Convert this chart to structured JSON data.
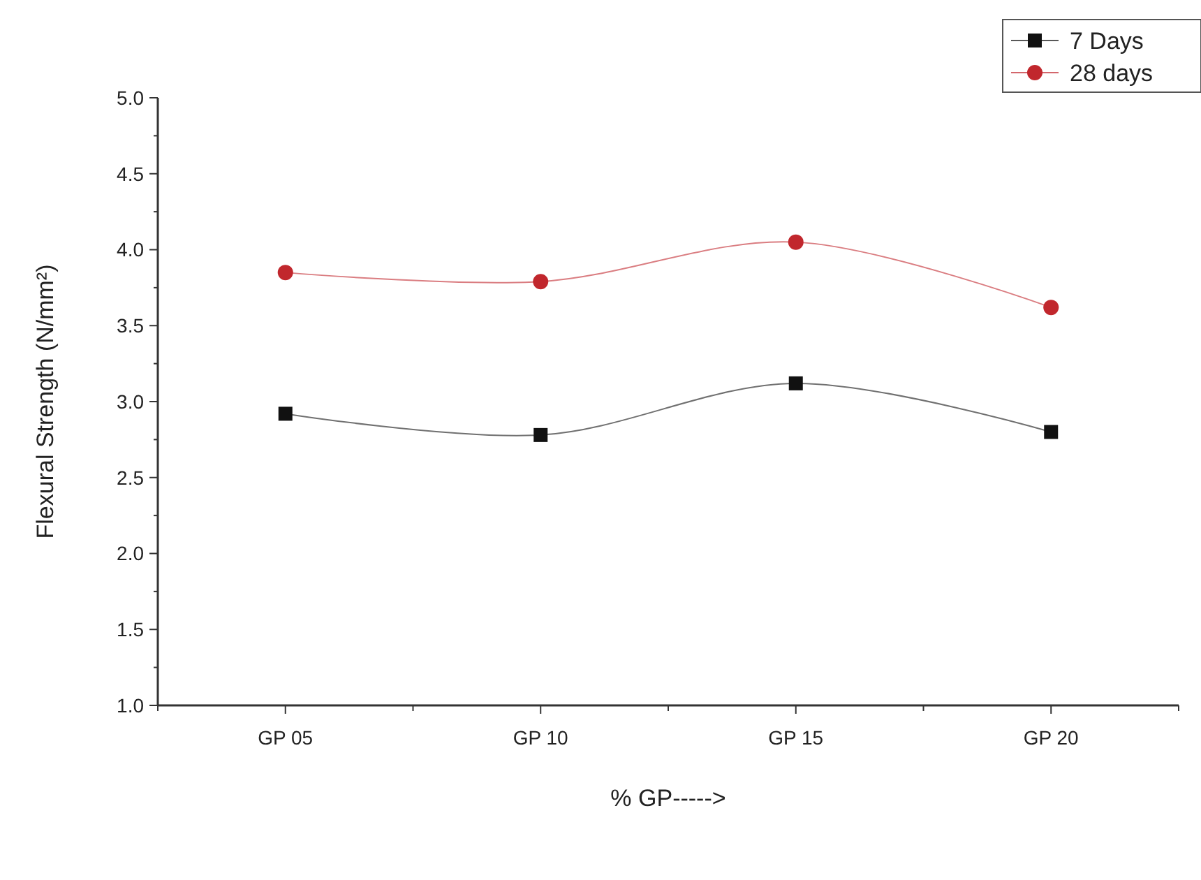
{
  "chart_data": {
    "type": "line",
    "xlabel": "% GP----->",
    "ylabel": "Flexural Strength (N/mm²)",
    "categories": [
      "GP 05",
      "GP 10",
      "GP 15",
      "GP 20"
    ],
    "series": [
      {
        "name": "7 Days",
        "color": "#111111",
        "marker": "square",
        "values": [
          2.92,
          2.78,
          3.12,
          2.8
        ]
      },
      {
        "name": "28 days",
        "color": "#c1272d",
        "marker": "circle",
        "values": [
          3.85,
          3.79,
          4.05,
          3.62
        ]
      }
    ],
    "ylim": [
      1,
      5
    ],
    "yticks": [
      {
        "value": 1,
        "label": "1.0"
      },
      {
        "value": 1.25,
        "label": null
      },
      {
        "value": 1.5,
        "label": "1.5"
      },
      {
        "value": 1.75,
        "label": null
      },
      {
        "value": 2,
        "label": "2.0"
      },
      {
        "value": 2.25,
        "label": null
      },
      {
        "value": 2.5,
        "label": "2.5"
      },
      {
        "value": 2.75,
        "label": null
      },
      {
        "value": 3,
        "label": "3.0"
      },
      {
        "value": 3.25,
        "label": null
      },
      {
        "value": 3.5,
        "label": "3.5"
      },
      {
        "value": 3.75,
        "label": null
      },
      {
        "value": 4,
        "label": "4.0"
      },
      {
        "value": 4.25,
        "label": null
      },
      {
        "value": 4.5,
        "label": "4.5"
      },
      {
        "value": 4.75,
        "label": null
      },
      {
        "value": 5,
        "label": "5.0"
      }
    ],
    "grid": false,
    "legend": "top right",
    "line_style": "solid"
  }
}
